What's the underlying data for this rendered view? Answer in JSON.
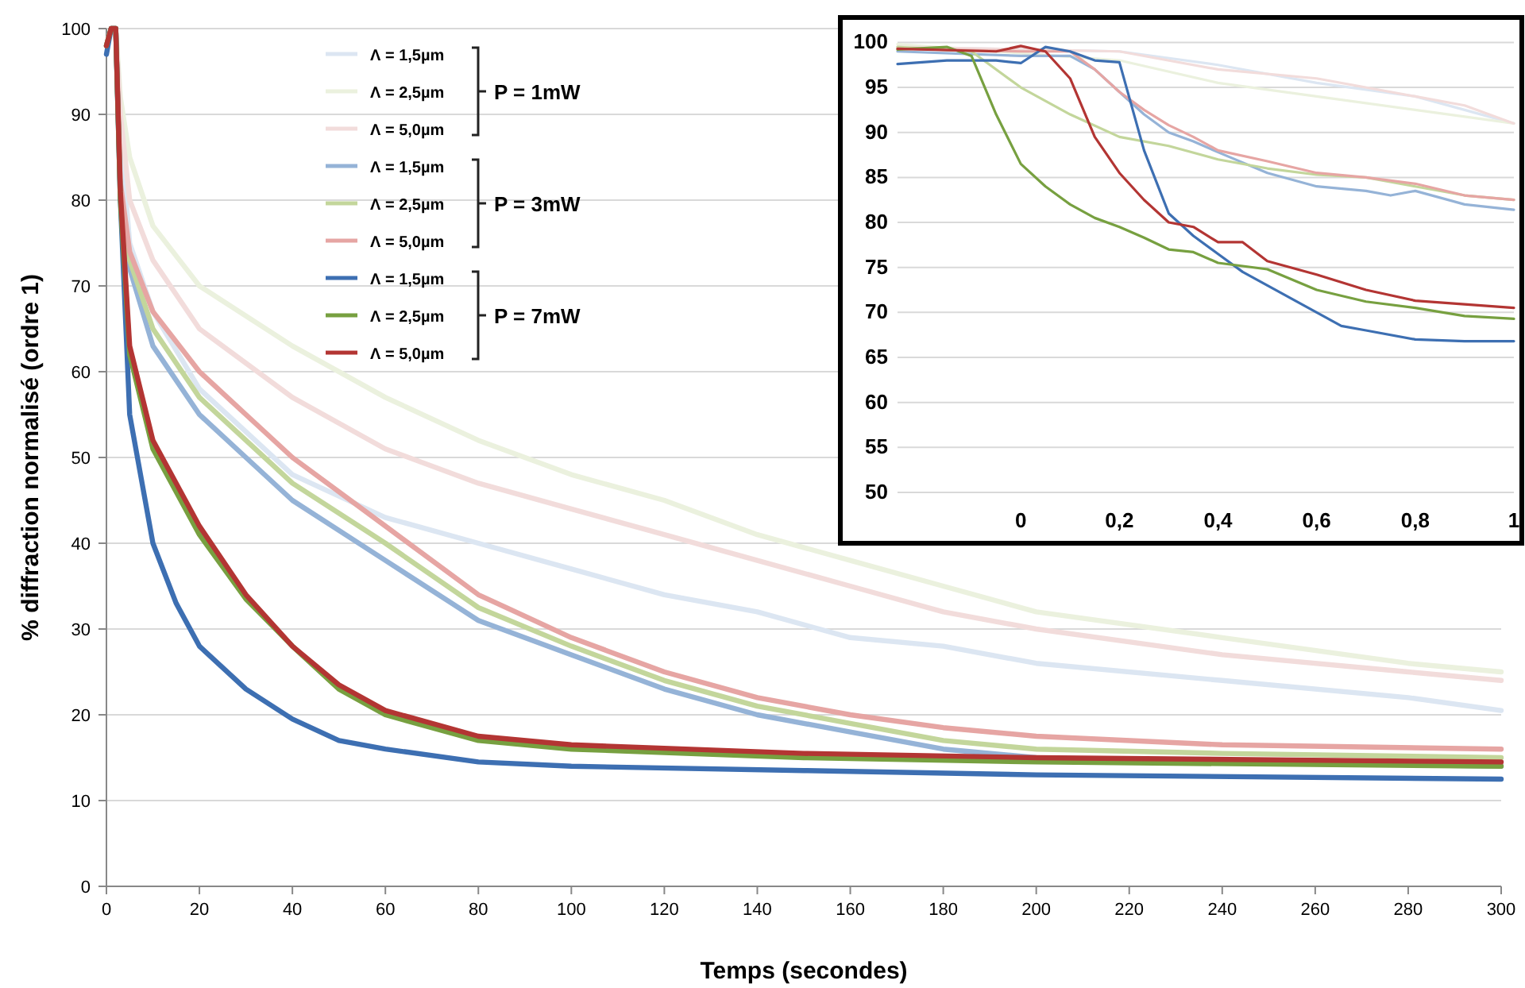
{
  "chart_data": [
    {
      "type": "line",
      "xlabel": "Temps (secondes)",
      "ylabel": "% diffraction normalisé (ordre 1)",
      "xlim": [
        0,
        300
      ],
      "ylim": [
        0,
        100
      ],
      "xticks": [
        0,
        20,
        40,
        60,
        80,
        100,
        120,
        140,
        160,
        180,
        200,
        220,
        240,
        260,
        280,
        300
      ],
      "yticks": [
        0,
        10,
        20,
        30,
        40,
        50,
        60,
        70,
        80,
        90,
        100
      ],
      "grid": "y",
      "legend": "top left",
      "annotations": [
        "P = 1mW",
        "P = 3mW",
        "P = 7mW"
      ],
      "series": [
        {
          "name": "Λ = 1,5µm",
          "color": "#dce6f2",
          "x": [
            0,
            1,
            2,
            3,
            5,
            10,
            20,
            30,
            40,
            60,
            80,
            100,
            120,
            140,
            160,
            180,
            200,
            240,
            280,
            300
          ],
          "values": [
            98,
            100,
            100,
            88,
            75,
            67,
            58,
            53,
            48,
            43,
            40,
            37,
            34,
            32,
            29,
            28,
            26,
            24,
            22,
            20.5
          ]
        },
        {
          "name": "Λ = 2,5µm",
          "color": "#ebf1de",
          "x": [
            0,
            1,
            2,
            3,
            5,
            10,
            20,
            40,
            60,
            80,
            100,
            120,
            140,
            160,
            180,
            200,
            240,
            280,
            300
          ],
          "values": [
            98,
            100,
            100,
            92,
            85,
            77,
            70,
            63,
            57,
            52,
            48,
            45,
            41,
            38,
            35,
            32,
            29,
            26,
            25
          ]
        },
        {
          "name": "Λ = 5,0µm",
          "color": "#f2dcdb",
          "x": [
            0,
            1,
            2,
            3,
            5,
            10,
            20,
            40,
            60,
            80,
            100,
            120,
            140,
            160,
            180,
            200,
            240,
            280,
            300
          ],
          "values": [
            98,
            100,
            100,
            90,
            80,
            73,
            65,
            57,
            51,
            47,
            44,
            41,
            38,
            35,
            32,
            30,
            27,
            25,
            24
          ]
        },
        {
          "name": "Λ = 1,5µm",
          "color": "#95b3d7",
          "x": [
            0,
            1,
            2,
            3,
            5,
            10,
            20,
            30,
            40,
            60,
            80,
            100,
            120,
            140,
            160,
            180,
            200,
            240,
            300
          ],
          "values": [
            98,
            100,
            100,
            80,
            72,
            63,
            55,
            50,
            45,
            38,
            31,
            27,
            23,
            20,
            18,
            16,
            15,
            14.5,
            14
          ]
        },
        {
          "name": "Λ = 2,5µm",
          "color": "#c3d69b",
          "x": [
            0,
            1,
            2,
            3,
            5,
            10,
            20,
            30,
            40,
            60,
            80,
            100,
            120,
            140,
            160,
            180,
            200,
            240,
            300
          ],
          "values": [
            98,
            100,
            100,
            81,
            73,
            65,
            57,
            52,
            47,
            40,
            32.5,
            28,
            24,
            21,
            19,
            17,
            16,
            15.5,
            15
          ]
        },
        {
          "name": "Λ = 5,0µm",
          "color": "#e6a5a3",
          "x": [
            0,
            1,
            2,
            3,
            5,
            10,
            20,
            30,
            40,
            60,
            80,
            100,
            120,
            140,
            160,
            180,
            200,
            240,
            300
          ],
          "values": [
            98,
            100,
            100,
            82,
            74,
            67,
            60,
            55,
            50,
            42,
            34,
            29,
            25,
            22,
            20,
            18.5,
            17.5,
            16.5,
            16
          ]
        },
        {
          "name": "Λ = 1,5µm",
          "color": "#3d6fb2",
          "x": [
            0,
            1,
            2,
            3,
            5,
            10,
            15,
            20,
            30,
            40,
            50,
            60,
            80,
            100,
            150,
            200,
            300
          ],
          "values": [
            97,
            100,
            100,
            80,
            55,
            40,
            33,
            28,
            23,
            19.5,
            17,
            16,
            14.5,
            14,
            13.5,
            13,
            12.5
          ]
        },
        {
          "name": "Λ = 2,5µm",
          "color": "#77a040",
          "x": [
            0,
            1,
            2,
            3,
            5,
            10,
            20,
            30,
            40,
            50,
            60,
            80,
            100,
            150,
            200,
            300
          ],
          "values": [
            98,
            100,
            100,
            80,
            62,
            51,
            41,
            33.5,
            28,
            23,
            20,
            17,
            16,
            15,
            14.5,
            14
          ]
        },
        {
          "name": "Λ = 5,0µm",
          "color": "#b33533",
          "x": [
            0,
            1,
            2,
            3,
            5,
            10,
            20,
            30,
            40,
            50,
            60,
            80,
            100,
            150,
            200,
            300
          ],
          "values": [
            98,
            100,
            100,
            81,
            63,
            52,
            42,
            34,
            28,
            23.5,
            20.5,
            17.5,
            16.5,
            15.5,
            15,
            14.5
          ]
        }
      ]
    },
    {
      "type": "line",
      "xlim": [
        -0.25,
        1
      ],
      "ylim": [
        50,
        100
      ],
      "xticks": [
        0,
        {
          "value": 0.2,
          "label": "0,2"
        },
        {
          "value": 0.4,
          "label": "0,4"
        },
        {
          "value": 0.6,
          "label": "0,6"
        },
        {
          "value": 0.8,
          "label": "0,8"
        },
        1
      ],
      "yticks": [
        50,
        55,
        60,
        65,
        70,
        75,
        80,
        85,
        90,
        95,
        100
      ],
      "grid": "y",
      "series": [
        {
          "color": "#dce6f2",
          "x": [
            -0.25,
            0.2,
            0.4,
            0.6,
            0.8,
            1
          ],
          "values": [
            99.5,
            99,
            97.5,
            95.5,
            94,
            91
          ]
        },
        {
          "color": "#ebf1de",
          "x": [
            -0.25,
            0.2,
            0.4,
            0.6,
            0.8,
            1
          ],
          "values": [
            99.8,
            98,
            95.5,
            94,
            92.5,
            91
          ]
        },
        {
          "color": "#f2dcdb",
          "x": [
            -0.25,
            0.2,
            0.4,
            0.6,
            0.8,
            0.9,
            1
          ],
          "values": [
            99.5,
            99,
            97,
            96,
            94,
            93,
            91
          ]
        },
        {
          "color": "#95b3d7",
          "x": [
            -0.25,
            0,
            0.1,
            0.15,
            0.2,
            0.25,
            0.3,
            0.35,
            0.4,
            0.5,
            0.6,
            0.7,
            0.75,
            0.8,
            0.9,
            1
          ],
          "values": [
            99,
            98.5,
            98.5,
            97,
            94.5,
            92,
            90,
            89,
            87.8,
            85.5,
            84,
            83.5,
            83,
            83.5,
            82,
            81.4
          ]
        },
        {
          "color": "#c3d69b",
          "x": [
            -0.25,
            -0.1,
            0,
            0.1,
            0.2,
            0.3,
            0.4,
            0.5,
            0.6,
            0.7,
            0.8,
            0.9,
            1
          ],
          "values": [
            99.5,
            99,
            95,
            92,
            89.5,
            88.5,
            87,
            86,
            85.3,
            85,
            84,
            83,
            82.5
          ]
        },
        {
          "color": "#e6a5a3",
          "x": [
            -0.25,
            0,
            0.1,
            0.15,
            0.2,
            0.25,
            0.3,
            0.35,
            0.4,
            0.5,
            0.6,
            0.7,
            0.8,
            0.9,
            1
          ],
          "values": [
            99.3,
            99,
            99,
            97,
            94.5,
            92.5,
            90.8,
            89.5,
            88,
            86.8,
            85.5,
            85,
            84.3,
            83,
            82.5
          ]
        },
        {
          "color": "#3d6fb2",
          "x": [
            -0.25,
            -0.15,
            -0.05,
            0,
            0.05,
            0.1,
            0.15,
            0.2,
            0.25,
            0.3,
            0.35,
            0.4,
            0.45,
            0.5,
            0.6,
            0.65,
            0.7,
            0.8,
            0.9,
            1
          ],
          "values": [
            97.6,
            98,
            98,
            97.7,
            99.5,
            99,
            98,
            97.8,
            88,
            81,
            78.5,
            76.5,
            74.5,
            73,
            70,
            68.5,
            68,
            67,
            66.8,
            66.8
          ]
        },
        {
          "color": "#77a040",
          "x": [
            -0.25,
            -0.15,
            -0.1,
            -0.05,
            0,
            0.05,
            0.1,
            0.15,
            0.2,
            0.25,
            0.3,
            0.35,
            0.4,
            0.5,
            0.6,
            0.7,
            0.8,
            0.9,
            1
          ],
          "values": [
            99.2,
            99.5,
            98.5,
            92,
            86.5,
            84,
            82,
            80.5,
            79.5,
            78.3,
            77,
            76.7,
            75.5,
            74.8,
            72.5,
            71.2,
            70.5,
            69.6,
            69.3
          ]
        },
        {
          "color": "#b33533",
          "x": [
            -0.25,
            -0.05,
            0,
            0.05,
            0.1,
            0.15,
            0.2,
            0.25,
            0.3,
            0.35,
            0.4,
            0.45,
            0.5,
            0.6,
            0.7,
            0.8,
            0.9,
            1
          ],
          "values": [
            99.3,
            99,
            99.6,
            99,
            96,
            89.5,
            85.5,
            82.5,
            80,
            79.5,
            77.8,
            77.8,
            75.7,
            74.2,
            72.5,
            71.3,
            70.9,
            70.5
          ]
        }
      ]
    }
  ]
}
